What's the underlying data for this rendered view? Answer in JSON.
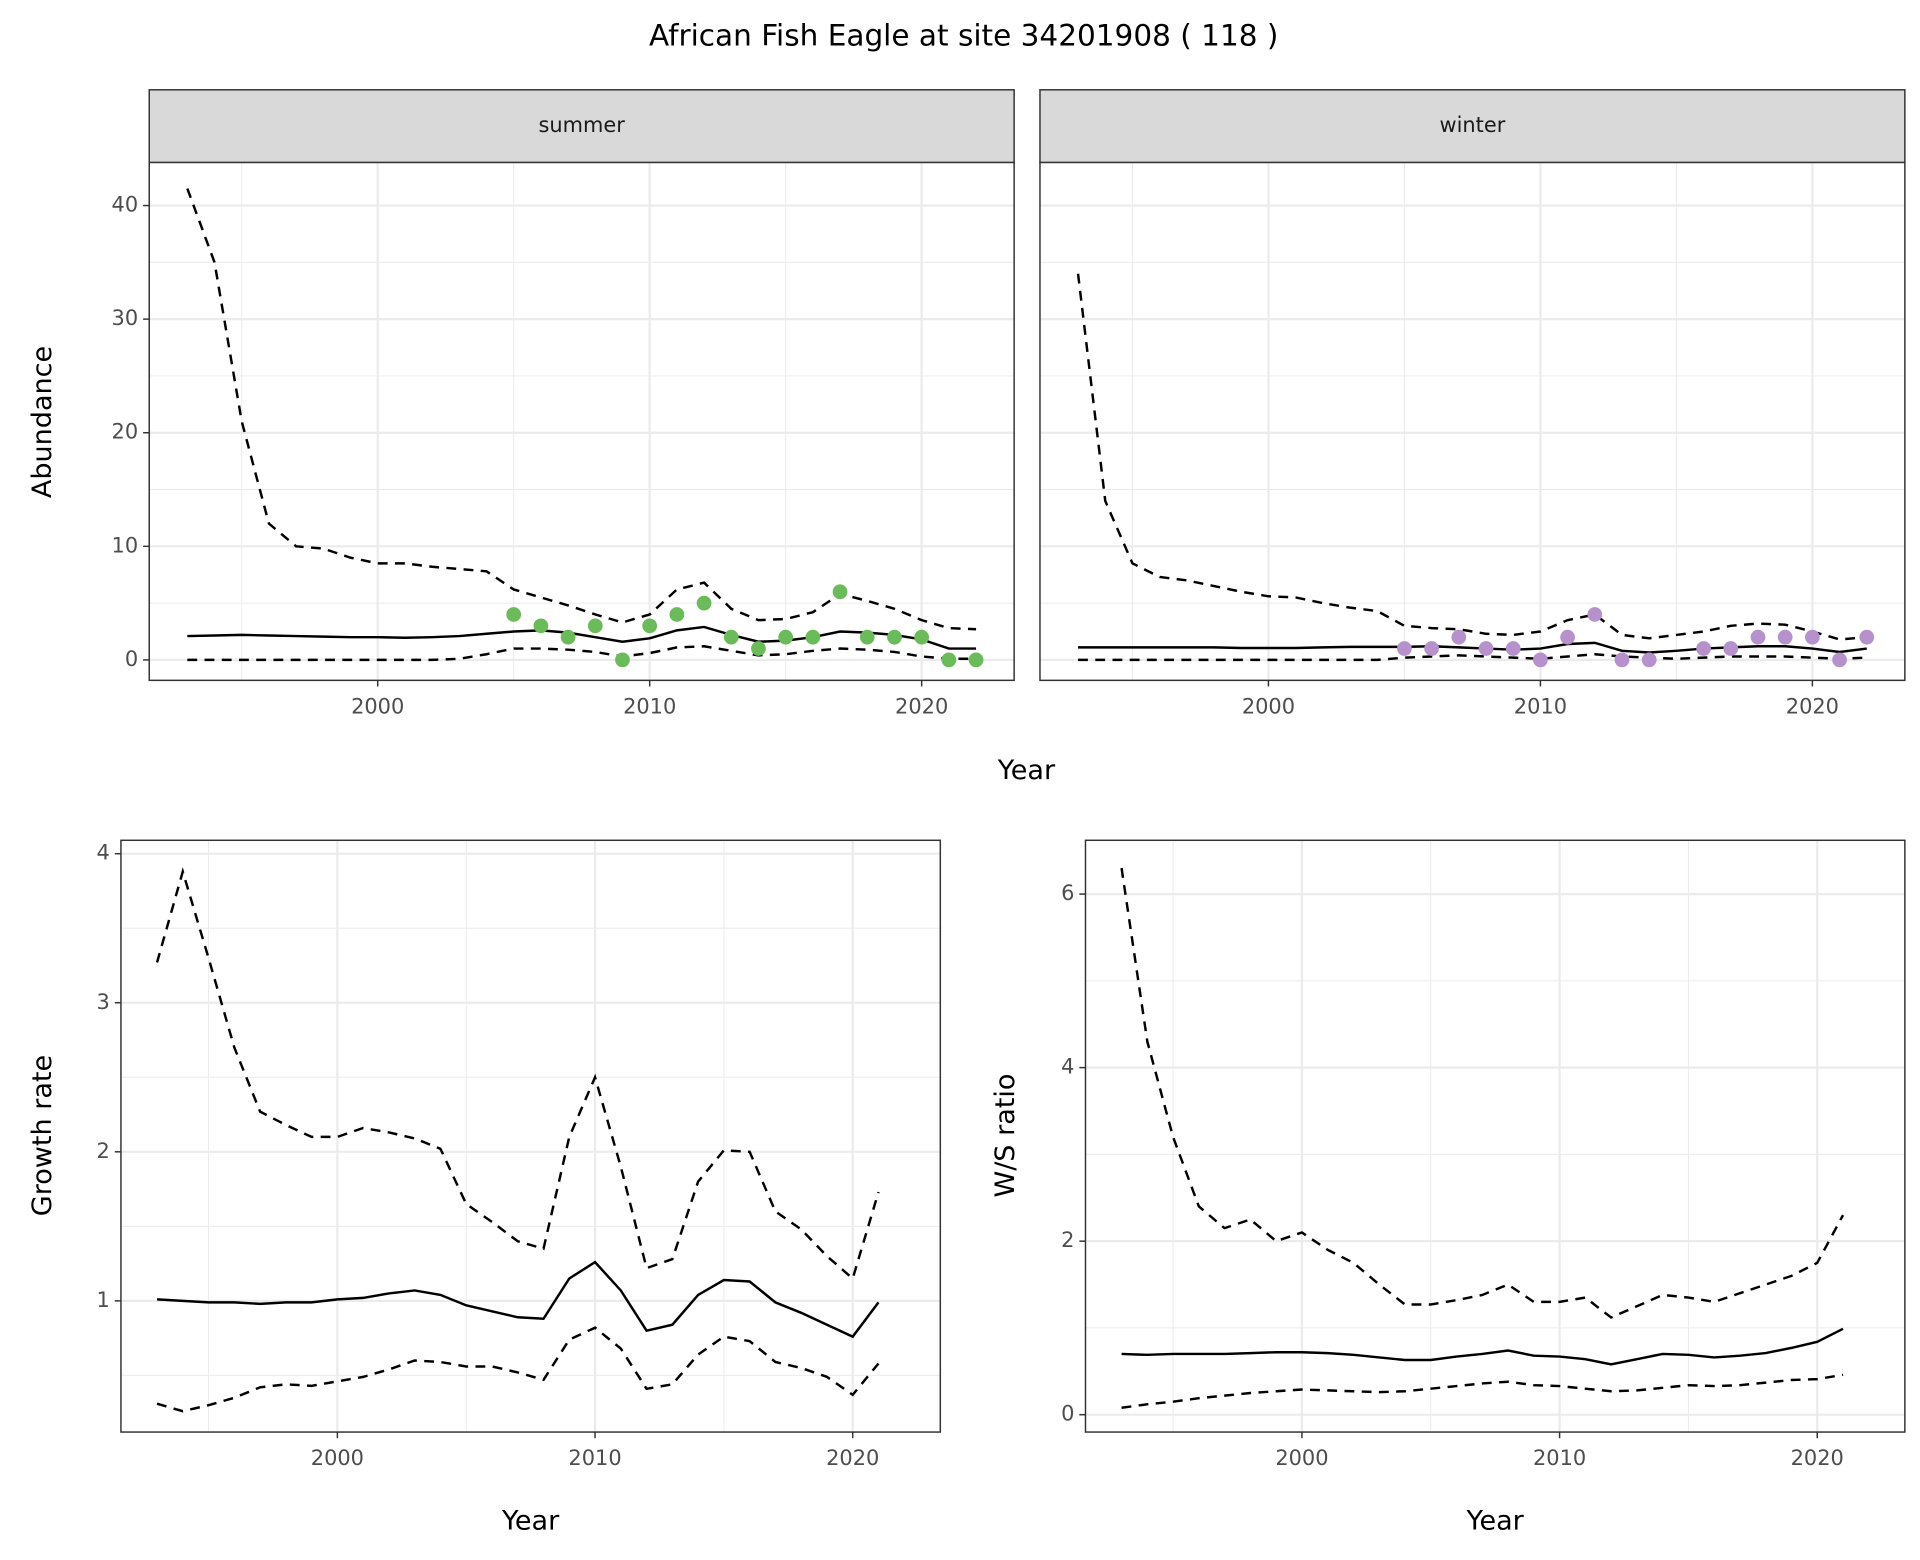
{
  "title": "African Fish Eagle at site 34201908 ( 118 )",
  "chart_data": [
    {
      "type": "line",
      "title": "summer",
      "ylabel": "Abundance",
      "xlabel": "Year",
      "xlim": [
        1991.6,
        2023.4
      ],
      "xticks": [
        2000,
        2010,
        2020
      ],
      "xminor": [
        1995,
        2005,
        2015
      ],
      "ylim": [
        -1.8,
        43.8
      ],
      "yticks": [
        0,
        10,
        20,
        30,
        40
      ],
      "yminor": [
        5,
        15,
        25,
        35
      ],
      "grid": true,
      "x": [
        1993,
        1994,
        1995,
        1996,
        1997,
        1998,
        1999,
        2000,
        2001,
        2002,
        2003,
        2004,
        2005,
        2006,
        2007,
        2008,
        2009,
        2010,
        2011,
        2012,
        2013,
        2014,
        2015,
        2016,
        2017,
        2018,
        2019,
        2020,
        2021,
        2022
      ],
      "series": [
        {
          "line": "dashed",
          "color": "#000000",
          "values": [
            41.5,
            35,
            21,
            12,
            10,
            9.8,
            9,
            8.5,
            8.5,
            8.2,
            8,
            7.8,
            6.2,
            5.5,
            4.8,
            4,
            3.3,
            4,
            6.2,
            6.8,
            4.5,
            3.5,
            3.6,
            4.2,
            5.8,
            5.2,
            4.5,
            3.5,
            2.8,
            2.7
          ]
        },
        {
          "line": "solid",
          "color": "#000000",
          "values": [
            2.1,
            2.15,
            2.2,
            2.15,
            2.1,
            2.05,
            2.0,
            2.0,
            1.95,
            2.0,
            2.1,
            2.3,
            2.5,
            2.6,
            2.4,
            2.0,
            1.6,
            1.9,
            2.6,
            2.9,
            2.2,
            1.6,
            1.7,
            2.0,
            2.5,
            2.4,
            2.2,
            1.8,
            1.0,
            1.0
          ]
        },
        {
          "line": "dashed",
          "color": "#000000",
          "values": [
            0,
            0,
            0,
            0,
            0,
            0,
            0,
            0,
            0,
            0,
            0.1,
            0.5,
            1,
            1,
            0.9,
            0.7,
            0.3,
            0.6,
            1.1,
            1.2,
            0.8,
            0.4,
            0.5,
            0.8,
            1,
            0.9,
            0.7,
            0.3,
            0.1,
            0.1
          ]
        }
      ],
      "points": {
        "color": "#6bbb5b",
        "x": [
          2005,
          2006,
          2007,
          2008,
          2009,
          2010,
          2011,
          2012,
          2013,
          2014,
          2015,
          2016,
          2017,
          2018,
          2019,
          2020,
          2021,
          2022
        ],
        "values": [
          4,
          3,
          2,
          3,
          0,
          3,
          4,
          5,
          2,
          1,
          2,
          2,
          6,
          2,
          2,
          2,
          0,
          0
        ]
      }
    },
    {
      "type": "line",
      "title": "winter",
      "xlim": [
        1991.6,
        2023.4
      ],
      "xticks": [
        2000,
        2010,
        2020
      ],
      "xminor": [
        1995,
        2005,
        2015
      ],
      "grid": true,
      "x": [
        1993,
        1994,
        1995,
        1996,
        1997,
        1998,
        1999,
        2000,
        2001,
        2002,
        2003,
        2004,
        2005,
        2006,
        2007,
        2008,
        2009,
        2010,
        2011,
        2012,
        2013,
        2014,
        2015,
        2016,
        2017,
        2018,
        2019,
        2020,
        2021,
        2022
      ],
      "series": [
        {
          "line": "dashed",
          "color": "#000000",
          "values": [
            34,
            14,
            8.5,
            7.3,
            7,
            6.5,
            6,
            5.6,
            5.5,
            5,
            4.6,
            4.3,
            3,
            2.8,
            2.7,
            2.3,
            2.2,
            2.5,
            3.5,
            4,
            2.2,
            1.9,
            2.2,
            2.5,
            3,
            3.2,
            3.1,
            2.5,
            1.8,
            2.0
          ]
        },
        {
          "line": "solid",
          "color": "#000000",
          "values": [
            1.1,
            1.1,
            1.1,
            1.1,
            1.1,
            1.1,
            1.05,
            1.05,
            1.05,
            1.1,
            1.15,
            1.15,
            1.15,
            1.2,
            1.1,
            1.0,
            0.9,
            1.0,
            1.4,
            1.5,
            0.8,
            0.65,
            0.8,
            1.0,
            1.1,
            1.2,
            1.2,
            1.0,
            0.7,
            1.0
          ]
        },
        {
          "line": "dashed",
          "color": "#000000",
          "values": [
            0,
            0,
            0,
            0,
            0,
            0,
            0,
            0,
            0,
            0,
            0,
            0,
            0.2,
            0.3,
            0.4,
            0.3,
            0.2,
            0.1,
            0.3,
            0.5,
            0.3,
            0.2,
            0.1,
            0.2,
            0.3,
            0.3,
            0.3,
            0.2,
            0.1,
            0.2
          ]
        }
      ],
      "points": {
        "color": "#b691cc",
        "x": [
          2005,
          2006,
          2007,
          2008,
          2009,
          2010,
          2011,
          2012,
          2013,
          2014,
          2016,
          2017,
          2018,
          2019,
          2020,
          2021,
          2022
        ],
        "values": [
          1,
          1,
          2,
          1,
          1,
          0,
          2,
          4,
          0,
          0,
          1,
          1,
          2,
          2,
          2,
          0,
          2
        ]
      }
    },
    {
      "type": "line",
      "ylabel": "Growth rate",
      "xlabel": "Year",
      "xlim": [
        1991.6,
        2023.4
      ],
      "xticks": [
        2000,
        2010,
        2020
      ],
      "xminor": [
        1995,
        2005,
        2015
      ],
      "ylim": [
        0.12,
        4.09
      ],
      "yticks": [
        1,
        2,
        3,
        4
      ],
      "yminor": [
        0.5,
        1.5,
        2.5,
        3.5
      ],
      "grid": true,
      "x": [
        1993,
        1994,
        1995,
        1996,
        1997,
        1998,
        1999,
        2000,
        2001,
        2002,
        2003,
        2004,
        2005,
        2006,
        2007,
        2008,
        2009,
        2010,
        2011,
        2012,
        2013,
        2014,
        2015,
        2016,
        2017,
        2018,
        2019,
        2020,
        2021
      ],
      "series": [
        {
          "line": "dashed",
          "color": "#000000",
          "values": [
            3.27,
            3.88,
            3.3,
            2.7,
            2.27,
            2.18,
            2.1,
            2.1,
            2.16,
            2.13,
            2.09,
            2.02,
            1.65,
            1.53,
            1.4,
            1.35,
            2.1,
            2.5,
            1.9,
            1.22,
            1.28,
            1.8,
            2.01,
            2.0,
            1.6,
            1.48,
            1.3,
            1.15,
            1.73
          ]
        },
        {
          "line": "solid",
          "color": "#000000",
          "values": [
            1.01,
            1.0,
            0.99,
            0.99,
            0.98,
            0.99,
            0.99,
            1.01,
            1.02,
            1.05,
            1.07,
            1.04,
            0.97,
            0.93,
            0.89,
            0.88,
            1.15,
            1.26,
            1.07,
            0.8,
            0.84,
            1.04,
            1.14,
            1.13,
            0.99,
            0.92,
            0.84,
            0.76,
            0.99
          ]
        },
        {
          "line": "dashed",
          "color": "#000000",
          "values": [
            0.31,
            0.26,
            0.3,
            0.35,
            0.42,
            0.44,
            0.43,
            0.46,
            0.49,
            0.54,
            0.6,
            0.59,
            0.56,
            0.56,
            0.52,
            0.47,
            0.74,
            0.82,
            0.68,
            0.41,
            0.44,
            0.64,
            0.76,
            0.73,
            0.59,
            0.55,
            0.49,
            0.37,
            0.58
          ]
        }
      ]
    },
    {
      "type": "line",
      "ylabel": "W/S ratio",
      "xlabel": "Year",
      "xlim": [
        1991.6,
        2023.4
      ],
      "xticks": [
        2000,
        2010,
        2020
      ],
      "xminor": [
        1995,
        2005,
        2015
      ],
      "ylim": [
        -0.2,
        6.62
      ],
      "yticks": [
        0,
        2,
        4,
        6
      ],
      "yminor": [
        1,
        3,
        5
      ],
      "grid": true,
      "x": [
        1993,
        1994,
        1995,
        1996,
        1997,
        1998,
        1999,
        2000,
        2001,
        2002,
        2003,
        2004,
        2005,
        2006,
        2007,
        2008,
        2009,
        2010,
        2011,
        2012,
        2013,
        2014,
        2015,
        2016,
        2017,
        2018,
        2019,
        2020,
        2021
      ],
      "series": [
        {
          "line": "dashed",
          "color": "#000000",
          "values": [
            6.3,
            4.3,
            3.2,
            2.4,
            2.15,
            2.25,
            2.0,
            2.1,
            1.9,
            1.75,
            1.5,
            1.27,
            1.27,
            1.32,
            1.38,
            1.5,
            1.3,
            1.3,
            1.35,
            1.12,
            1.25,
            1.38,
            1.35,
            1.3,
            1.4,
            1.5,
            1.6,
            1.75,
            2.3
          ]
        },
        {
          "line": "solid",
          "color": "#000000",
          "values": [
            0.7,
            0.69,
            0.7,
            0.7,
            0.7,
            0.71,
            0.72,
            0.72,
            0.71,
            0.69,
            0.66,
            0.63,
            0.63,
            0.67,
            0.7,
            0.74,
            0.68,
            0.67,
            0.64,
            0.58,
            0.64,
            0.7,
            0.69,
            0.66,
            0.68,
            0.71,
            0.77,
            0.84,
            0.99
          ]
        },
        {
          "line": "dashed",
          "color": "#000000",
          "values": [
            0.08,
            0.12,
            0.15,
            0.19,
            0.22,
            0.25,
            0.27,
            0.29,
            0.28,
            0.27,
            0.26,
            0.27,
            0.3,
            0.33,
            0.36,
            0.38,
            0.34,
            0.33,
            0.3,
            0.27,
            0.28,
            0.31,
            0.34,
            0.33,
            0.34,
            0.37,
            0.4,
            0.41,
            0.46
          ]
        }
      ]
    }
  ]
}
